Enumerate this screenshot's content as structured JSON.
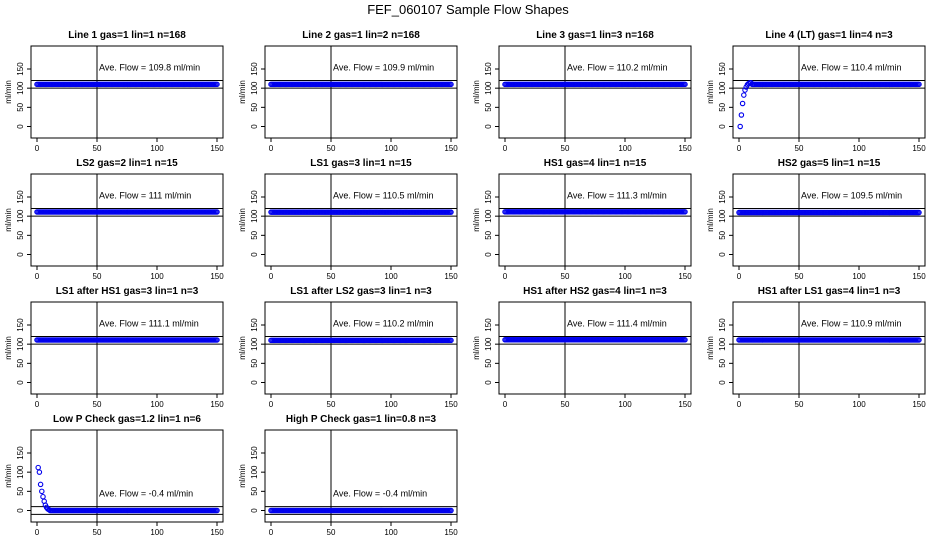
{
  "page_title": "FEF_060107  Sample Flow Shapes",
  "chart_data": [
    {
      "type": "scatter",
      "title": "Line 1 gas=1 lin=1 n=168",
      "ylabel": "ml/min",
      "annotation": "Ave. Flow =  109.8  ml/min",
      "xlim": [
        -5,
        155
      ],
      "ylim": [
        -30,
        210
      ],
      "xticks": [
        "0",
        "50",
        "100",
        "150"
      ],
      "yticks": [
        "0",
        "50",
        "100",
        "150"
      ],
      "hlines": [
        100,
        120
      ],
      "vline": 50,
      "shape": "flat",
      "level": 110,
      "x_end": 150
    },
    {
      "type": "scatter",
      "title": "Line 2 gas=1 lin=2 n=168",
      "ylabel": "ml/min",
      "annotation": "Ave. Flow =  109.9  ml/min",
      "xlim": [
        -5,
        155
      ],
      "ylim": [
        -30,
        210
      ],
      "xticks": [
        "0",
        "50",
        "100",
        "150"
      ],
      "yticks": [
        "0",
        "50",
        "100",
        "150"
      ],
      "hlines": [
        100,
        120
      ],
      "vline": 50,
      "shape": "flat",
      "level": 110,
      "x_end": 150
    },
    {
      "type": "scatter",
      "title": "Line 3 gas=1 lin=3 n=168",
      "ylabel": "ml/min",
      "annotation": "Ave. Flow =  110.2  ml/min",
      "xlim": [
        -5,
        155
      ],
      "ylim": [
        -30,
        210
      ],
      "xticks": [
        "0",
        "50",
        "100",
        "150"
      ],
      "yticks": [
        "0",
        "50",
        "100",
        "150"
      ],
      "hlines": [
        100,
        120
      ],
      "vline": 50,
      "shape": "flat",
      "level": 110,
      "x_end": 150
    },
    {
      "type": "scatter",
      "title": "Line 4 (LT) gas=1 lin=4 n=3",
      "ylabel": "ml/min",
      "annotation": "Ave. Flow =  110.4  ml/min",
      "xlim": [
        -5,
        155
      ],
      "ylim": [
        -30,
        210
      ],
      "xticks": [
        "0",
        "50",
        "100",
        "150"
      ],
      "yticks": [
        "0",
        "50",
        "100",
        "150"
      ],
      "hlines": [
        100,
        120
      ],
      "vline": 50,
      "shape": "rise",
      "level": 110,
      "x_end": 150
    },
    {
      "type": "scatter",
      "title": "LS2 gas=2 lin=1 n=15",
      "ylabel": "ml/min",
      "annotation": "Ave. Flow =  111  ml/min",
      "xlim": [
        -5,
        155
      ],
      "ylim": [
        -30,
        210
      ],
      "xticks": [
        "0",
        "50",
        "100",
        "150"
      ],
      "yticks": [
        "0",
        "50",
        "100",
        "150"
      ],
      "hlines": [
        100,
        120
      ],
      "vline": 50,
      "shape": "flat",
      "level": 111,
      "x_end": 150
    },
    {
      "type": "scatter",
      "title": "LS1 gas=3 lin=1 n=15",
      "ylabel": "ml/min",
      "annotation": "Ave. Flow =  110.5  ml/min",
      "xlim": [
        -5,
        155
      ],
      "ylim": [
        -30,
        210
      ],
      "xticks": [
        "0",
        "50",
        "100",
        "150"
      ],
      "yticks": [
        "0",
        "50",
        "100",
        "150"
      ],
      "hlines": [
        100,
        120
      ],
      "vline": 50,
      "shape": "flat",
      "level": 110.5,
      "x_end": 150
    },
    {
      "type": "scatter",
      "title": "HS1 gas=4 lin=1 n=15",
      "ylabel": "ml/min",
      "annotation": "Ave. Flow =  111.3  ml/min",
      "xlim": [
        -5,
        155
      ],
      "ylim": [
        -30,
        210
      ],
      "xticks": [
        "0",
        "50",
        "100",
        "150"
      ],
      "yticks": [
        "0",
        "50",
        "100",
        "150"
      ],
      "hlines": [
        100,
        120
      ],
      "vline": 50,
      "shape": "flat",
      "level": 111.3,
      "x_end": 150
    },
    {
      "type": "scatter",
      "title": "HS2 gas=5 lin=1 n=15",
      "ylabel": "ml/min",
      "annotation": "Ave. Flow =  109.5  ml/min",
      "xlim": [
        -5,
        155
      ],
      "ylim": [
        -30,
        210
      ],
      "xticks": [
        "0",
        "50",
        "100",
        "150"
      ],
      "yticks": [
        "0",
        "50",
        "100",
        "150"
      ],
      "hlines": [
        100,
        120
      ],
      "vline": 50,
      "shape": "flat",
      "level": 109.5,
      "x_end": 150
    },
    {
      "type": "scatter",
      "title": "LS1 after HS1 gas=3 lin=1 n=3",
      "ylabel": "ml/min",
      "annotation": "Ave. Flow =  111.1  ml/min",
      "xlim": [
        -5,
        155
      ],
      "ylim": [
        -30,
        210
      ],
      "xticks": [
        "0",
        "50",
        "100",
        "150"
      ],
      "yticks": [
        "0",
        "50",
        "100",
        "150"
      ],
      "hlines": [
        100,
        120
      ],
      "vline": 50,
      "shape": "flat",
      "level": 111,
      "x_end": 150
    },
    {
      "type": "scatter",
      "title": "LS1 after LS2 gas=3 lin=1 n=3",
      "ylabel": "ml/min",
      "annotation": "Ave. Flow =  110.2  ml/min",
      "xlim": [
        -5,
        155
      ],
      "ylim": [
        -30,
        210
      ],
      "xticks": [
        "0",
        "50",
        "100",
        "150"
      ],
      "yticks": [
        "0",
        "50",
        "100",
        "150"
      ],
      "hlines": [
        100,
        120
      ],
      "vline": 50,
      "shape": "flat",
      "level": 110,
      "x_end": 150
    },
    {
      "type": "scatter",
      "title": "HS1 after HS2 gas=4 lin=1 n=3",
      "ylabel": "ml/min",
      "annotation": "Ave. Flow =  111.4  ml/min",
      "xlim": [
        -5,
        155
      ],
      "ylim": [
        -30,
        210
      ],
      "xticks": [
        "0",
        "50",
        "100",
        "150"
      ],
      "yticks": [
        "0",
        "50",
        "100",
        "150"
      ],
      "hlines": [
        100,
        120
      ],
      "vline": 50,
      "shape": "flat",
      "level": 111.4,
      "x_end": 150
    },
    {
      "type": "scatter",
      "title": "HS1 after LS1 gas=4 lin=1 n=3",
      "ylabel": "ml/min",
      "annotation": "Ave. Flow =  110.9  ml/min",
      "xlim": [
        -5,
        155
      ],
      "ylim": [
        -30,
        210
      ],
      "xticks": [
        "0",
        "50",
        "100",
        "150"
      ],
      "yticks": [
        "0",
        "50",
        "100",
        "150"
      ],
      "hlines": [
        100,
        120
      ],
      "vline": 50,
      "shape": "flat",
      "level": 110.9,
      "x_end": 150
    },
    {
      "type": "scatter",
      "title": "Low P Check gas=1.2 lin=1 n=6",
      "ylabel": "ml/min",
      "annotation": "Ave. Flow =  -0.4  ml/min",
      "xlim": [
        -5,
        155
      ],
      "ylim": [
        -30,
        210
      ],
      "xticks": [
        "0",
        "50",
        "100",
        "150"
      ],
      "yticks": [
        "0",
        "50",
        "100",
        "150"
      ],
      "hlines": [
        -10,
        10
      ],
      "vline": 50,
      "shape": "decay",
      "level": 0,
      "x_end": 150
    },
    {
      "type": "scatter",
      "title": "High P Check gas=1 lin=0.8 n=3",
      "ylabel": "ml/min",
      "annotation": "Ave. Flow =  -0.4  ml/min",
      "xlim": [
        -5,
        155
      ],
      "ylim": [
        -30,
        210
      ],
      "xticks": [
        "0",
        "50",
        "100",
        "150"
      ],
      "yticks": [
        "0",
        "50",
        "100",
        "150"
      ],
      "hlines": [
        -10,
        10
      ],
      "vline": 50,
      "shape": "flat",
      "level": 0,
      "x_end": 150
    }
  ],
  "marker_color": "#0000ee"
}
